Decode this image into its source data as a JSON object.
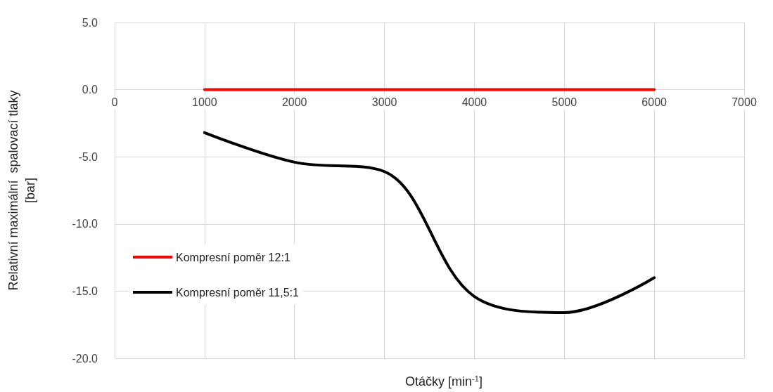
{
  "chart_data": {
    "type": "line",
    "xlabel": "Otáčky [min$^{-1}$]",
    "ylabel": "Relativní maximální  spalovací tlaky\n[bar]",
    "x": [
      1000,
      2000,
      3000,
      4000,
      5000,
      6000
    ],
    "series": [
      {
        "name": "Kompresní poměr 12:1",
        "color": "#ff0000",
        "values": [
          0,
          0,
          0,
          0,
          0,
          0
        ]
      },
      {
        "name": "Kompresní poměr 11,5:1",
        "color": "#000000",
        "values": [
          -3.2,
          -5.4,
          -6.1,
          -15.4,
          -16.6,
          -14.0
        ]
      }
    ],
    "xlim": [
      0,
      7000
    ],
    "xticks": [
      0,
      1000,
      2000,
      3000,
      4000,
      5000,
      6000,
      7000
    ],
    "ylim": [
      -20,
      5
    ],
    "yticks": [
      {
        "value": -20,
        "label": "-20.0"
      },
      {
        "value": -15,
        "label": "-15.0"
      },
      {
        "value": -10,
        "label": "-10.0"
      },
      {
        "value": -5,
        "label": "-5.0"
      },
      {
        "value": 0,
        "label": "0.0"
      },
      {
        "value": 5,
        "label": "5.0"
      }
    ],
    "grid": true,
    "legend": "left",
    "marker": "none",
    "line_style": "solid"
  }
}
